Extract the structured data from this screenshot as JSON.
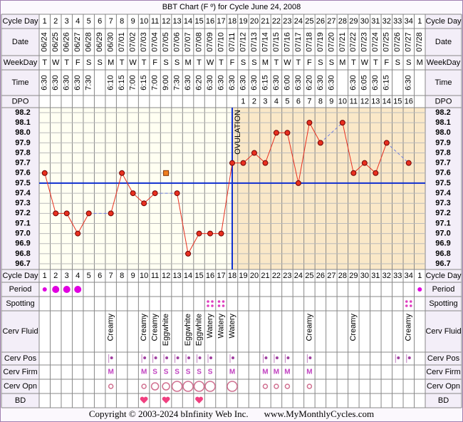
{
  "chart_data": {
    "type": "line",
    "title": "BBT Chart (F º) for Cycle June 24, 2008",
    "row_labels": {
      "cycle_day": "Cycle Day",
      "date": "Date",
      "weekday": "WeekDay",
      "time": "Time",
      "dpo": "DPO",
      "period": "Period",
      "spotting": "Spotting",
      "cerv_fluid": "Cerv Fluid",
      "cerv_pos": "Cerv Pos",
      "cerv_firm": "Cerv Firm",
      "cerv_opn": "Cerv Opn",
      "bd": "BD"
    },
    "cycle_days": [
      1,
      2,
      3,
      4,
      5,
      6,
      7,
      8,
      9,
      10,
      11,
      12,
      13,
      14,
      15,
      16,
      17,
      18,
      19,
      20,
      21,
      22,
      23,
      24,
      25,
      26,
      27,
      28,
      29,
      30,
      31,
      32,
      33,
      34,
      1
    ],
    "categories": [
      "06/24",
      "06/25",
      "06/26",
      "06/27",
      "06/28",
      "06/29",
      "06/30",
      "07/01",
      "07/02",
      "07/03",
      "07/04",
      "07/05",
      "07/06",
      "07/07",
      "07/08",
      "07/09",
      "07/10",
      "07/11",
      "07/12",
      "07/13",
      "07/14",
      "07/15",
      "07/16",
      "07/17",
      "07/18",
      "07/19",
      "07/20",
      "07/21",
      "07/22",
      "07/23",
      "07/24",
      "07/25",
      "07/26",
      "07/27",
      "07/28"
    ],
    "weekdays": [
      "T",
      "W",
      "T",
      "F",
      "S",
      "S",
      "M",
      "T",
      "W",
      "T",
      "F",
      "S",
      "S",
      "M",
      "T",
      "W",
      "T",
      "F",
      "S",
      "S",
      "M",
      "T",
      "W",
      "T",
      "F",
      "S",
      "S",
      "M",
      "T",
      "W",
      "T",
      "F",
      "S",
      "S",
      "M"
    ],
    "times": [
      "6:30",
      "6:30",
      "6:30",
      "6:30",
      "7:30",
      null,
      "6:10",
      "6:15",
      "7:00",
      "6:15",
      "7:00",
      "9:00",
      "7:30",
      "6:30",
      "6:20",
      "6:30",
      "6:30",
      "6:30",
      "6:30",
      "6:30",
      "6:15",
      "6:30",
      "6:00",
      "6:30",
      "6:20",
      "6:30",
      "6:30",
      null,
      "6:30",
      "6:05",
      "6:30",
      "6:15",
      null,
      "6:30",
      null
    ],
    "dpo": [
      null,
      null,
      null,
      null,
      null,
      null,
      null,
      null,
      null,
      null,
      null,
      null,
      null,
      null,
      null,
      null,
      null,
      null,
      1,
      2,
      3,
      4,
      5,
      6,
      7,
      8,
      9,
      10,
      11,
      12,
      13,
      14,
      15,
      16,
      null
    ],
    "values": [
      97.6,
      97.2,
      97.2,
      97.0,
      97.2,
      null,
      97.2,
      97.6,
      97.4,
      97.3,
      97.4,
      null,
      97.4,
      96.8,
      97.0,
      97.0,
      97.0,
      97.7,
      97.7,
      97.8,
      97.7,
      98.0,
      98.0,
      97.5,
      98.1,
      97.9,
      null,
      98.1,
      97.6,
      97.7,
      97.6,
      97.9,
      null,
      97.7,
      null
    ],
    "color": "#e83020",
    "discarded": [
      null,
      null,
      null,
      null,
      null,
      null,
      null,
      null,
      null,
      null,
      null,
      97.6,
      null,
      null,
      null,
      null,
      null,
      null,
      null,
      null,
      null,
      null,
      null,
      null,
      null,
      null,
      null,
      null,
      null,
      null,
      null,
      null,
      null,
      null,
      null
    ],
    "ylim": [
      96.7,
      98.2
    ],
    "yticks": [
      96.7,
      96.8,
      96.9,
      {
        "value": 97.0,
        "label": "97.0"
      },
      97.1,
      97.2,
      97.3,
      97.4,
      97.5,
      97.6,
      97.7,
      97.8,
      97.9,
      {
        "value": 98.0,
        "label": "98.0"
      },
      98.1,
      98.2
    ],
    "grid": true,
    "coverline": 97.5,
    "ovulation_day": 18,
    "ovulation_label": "OVULATION",
    "period": [
      1,
      2,
      2,
      2,
      null,
      null,
      null,
      null,
      null,
      null,
      null,
      null,
      null,
      null,
      null,
      null,
      null,
      null,
      null,
      null,
      null,
      null,
      null,
      null,
      null,
      null,
      null,
      null,
      null,
      null,
      null,
      null,
      null,
      null,
      1
    ],
    "spotting": [
      null,
      null,
      null,
      null,
      null,
      null,
      null,
      null,
      null,
      null,
      null,
      null,
      null,
      null,
      null,
      1,
      1,
      null,
      null,
      null,
      null,
      null,
      null,
      null,
      null,
      null,
      null,
      null,
      null,
      null,
      null,
      null,
      null,
      1,
      null
    ],
    "cerv_fluid": [
      null,
      null,
      null,
      null,
      null,
      null,
      "Creamy",
      null,
      null,
      "Creamy",
      "Creamy",
      "Eggwhite",
      null,
      "Eggwhite",
      "Eggwhite",
      "Watery",
      "Watery",
      "Watery",
      null,
      null,
      null,
      null,
      null,
      null,
      "Creamy",
      null,
      null,
      null,
      "Creamy",
      null,
      null,
      null,
      null,
      "Creamy",
      null
    ],
    "cerv_pos": [
      null,
      null,
      null,
      null,
      null,
      null,
      1,
      null,
      null,
      1,
      1,
      1,
      1,
      1,
      1,
      1,
      null,
      1,
      null,
      null,
      1,
      1,
      1,
      null,
      1,
      null,
      null,
      null,
      null,
      null,
      null,
      null,
      1,
      1,
      null
    ],
    "cerv_firm": [
      null,
      null,
      null,
      null,
      null,
      null,
      "M",
      null,
      null,
      "M",
      "S",
      "S",
      "S",
      "S",
      "S",
      "S",
      null,
      "M",
      null,
      null,
      "M",
      "M",
      "M",
      null,
      "M",
      null,
      null,
      null,
      null,
      null,
      null,
      null,
      null,
      null,
      null
    ],
    "cerv_opn": [
      null,
      null,
      null,
      null,
      null,
      null,
      1,
      null,
      null,
      1,
      2,
      2,
      3,
      3,
      3,
      3,
      null,
      3,
      null,
      null,
      1,
      1,
      1,
      null,
      1,
      null,
      null,
      null,
      null,
      null,
      null,
      null,
      null,
      null,
      null
    ],
    "bd": [
      null,
      null,
      null,
      null,
      null,
      null,
      null,
      null,
      null,
      1,
      null,
      1,
      null,
      null,
      1,
      null,
      null,
      null,
      null,
      null,
      null,
      null,
      null,
      null,
      null,
      null,
      null,
      null,
      null,
      null,
      null,
      null,
      null,
      null,
      null
    ],
    "copyright": "Copyright © 2003-2024 bInfinity Web Inc.",
    "website": "www.MyMonthlyCycles.com"
  }
}
